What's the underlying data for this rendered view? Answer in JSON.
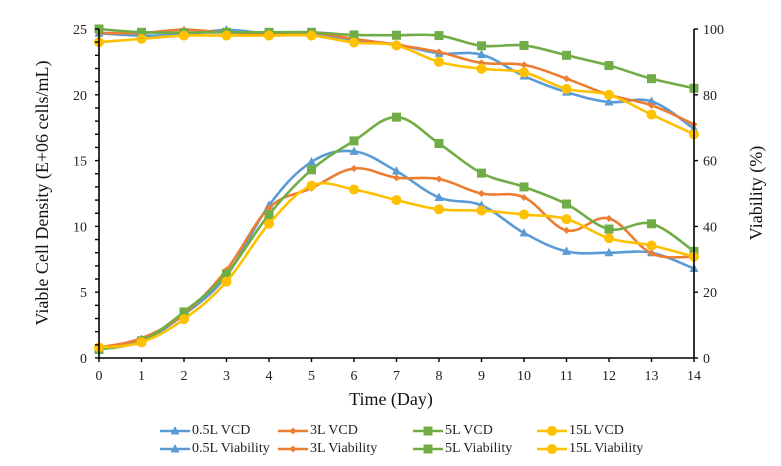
{
  "chart_data": {
    "type": "line",
    "title": "",
    "xlabel": "Time (Day)",
    "ylabel": "Viable Cell Density (E+06 cells/mL)",
    "y2label": "Viability (%)",
    "x": [
      0,
      1,
      2,
      3,
      4,
      5,
      6,
      7,
      8,
      9,
      10,
      11,
      12,
      13,
      14
    ],
    "xlim": [
      0,
      14
    ],
    "ylim": [
      0,
      25
    ],
    "y2lim": [
      0,
      100
    ],
    "xticks": [
      "0",
      "1",
      "2",
      "3",
      "4",
      "5",
      "6",
      "7",
      "8",
      "9",
      "10",
      "11",
      "12",
      "13",
      "14"
    ],
    "yticks": [
      "0",
      "5",
      "10",
      "15",
      "20",
      "25"
    ],
    "y2ticks": [
      "0",
      "20",
      "40",
      "60",
      "80",
      "100"
    ],
    "grid": false,
    "legend_position": "bottom",
    "series": [
      {
        "name": "0.5L VCD",
        "axis": "left",
        "color": "#5B9BD5",
        "marker": "triangle",
        "values": [
          0.75,
          1.3,
          3.3,
          6.25,
          11.6,
          14.9,
          15.7,
          14.2,
          12.2,
          11.6,
          9.5,
          8.1,
          8.0,
          8.0,
          6.8
        ]
      },
      {
        "name": "3L VCD",
        "axis": "left",
        "color": "#ED7D31",
        "marker": "diamond",
        "values": [
          0.8,
          1.5,
          3.35,
          6.7,
          11.4,
          12.9,
          14.4,
          13.7,
          13.6,
          12.5,
          12.2,
          9.7,
          10.6,
          7.95,
          7.7
        ]
      },
      {
        "name": "5L VCD",
        "axis": "left",
        "color": "#70AD47",
        "marker": "square",
        "values": [
          0.65,
          1.3,
          3.5,
          6.4,
          10.9,
          14.3,
          16.5,
          18.3,
          16.3,
          14.05,
          13.0,
          11.7,
          9.8,
          10.2,
          8.1
        ]
      },
      {
        "name": "15L VCD",
        "axis": "left",
        "color": "#FFC000",
        "marker": "circle",
        "values": [
          0.8,
          1.2,
          2.95,
          5.8,
          10.2,
          13.1,
          12.8,
          12.0,
          11.3,
          11.2,
          10.9,
          10.55,
          9.1,
          8.55,
          7.7
        ]
      },
      {
        "name": "0.5L Viability",
        "axis": "right",
        "color": "#5B9BD5",
        "marker": "triangle",
        "values": [
          98.7,
          98.0,
          98.3,
          99.7,
          98.6,
          98.5,
          96.7,
          95.3,
          92.6,
          92.2,
          85.7,
          80.8,
          77.8,
          78.0,
          69.7
        ]
      },
      {
        "name": "3L Viability",
        "axis": "right",
        "color": "#ED7D31",
        "marker": "diamond",
        "values": [
          98.8,
          98.8,
          99.8,
          98.9,
          98.6,
          98.9,
          97.0,
          95.2,
          93.0,
          89.7,
          89.1,
          84.9,
          80.0,
          76.8,
          71.0
        ]
      },
      {
        "name": "5L Viability",
        "axis": "right",
        "color": "#70AD47",
        "marker": "square",
        "values": [
          100.0,
          99.0,
          98.9,
          99.0,
          99.0,
          99.0,
          98.2,
          98.1,
          98.0,
          94.9,
          95.0,
          92.0,
          88.9,
          84.9,
          82.0
        ]
      },
      {
        "name": "15L Viability",
        "axis": "right",
        "color": "#FFC000",
        "marker": "circle",
        "values": [
          96.0,
          97.0,
          98.0,
          98.0,
          98.0,
          98.0,
          95.9,
          95.0,
          90.0,
          87.9,
          86.8,
          81.8,
          80.0,
          74.0,
          68.0
        ]
      }
    ]
  },
  "legend": {
    "items": [
      {
        "label": "0.5L VCD",
        "color": "#5B9BD5",
        "marker": "triangle"
      },
      {
        "label": "3L VCD",
        "color": "#ED7D31",
        "marker": "diamond"
      },
      {
        "label": "5L VCD",
        "color": "#70AD47",
        "marker": "square"
      },
      {
        "label": "15L VCD",
        "color": "#FFC000",
        "marker": "circle"
      },
      {
        "label": "0.5L Viability",
        "color": "#5B9BD5",
        "marker": "triangle"
      },
      {
        "label": "3L Viability",
        "color": "#ED7D31",
        "marker": "diamond"
      },
      {
        "label": "5L Viability",
        "color": "#70AD47",
        "marker": "square"
      },
      {
        "label": "15L Viability",
        "color": "#FFC000",
        "marker": "circle"
      }
    ]
  }
}
